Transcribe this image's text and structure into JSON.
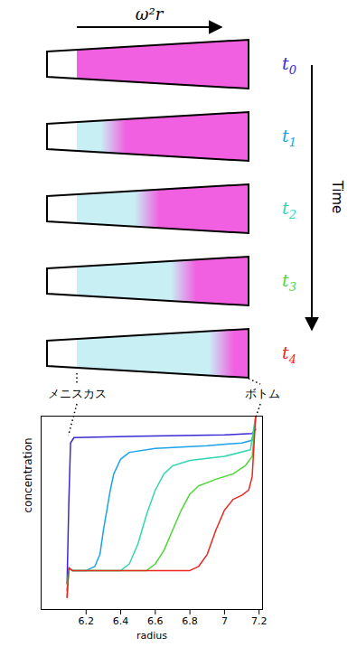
{
  "chart_data": {
    "type": "line",
    "xlabel": "radius",
    "ylabel": "concentration",
    "xlim": [
      5.94,
      7.22
    ],
    "xticks": [
      6.2,
      6.4,
      6.6,
      6.8,
      7,
      7.2
    ],
    "ylim": [
      -0.29,
      1.15
    ],
    "yticks": [],
    "tick_labels": "x",
    "grid": false,
    "series": [
      {
        "name": "t0",
        "color": "#3a2ad6",
        "line_style": "solid",
        "x": [
          6.09,
          6.1,
          6.11,
          6.13,
          6.5,
          7.0,
          7.16,
          7.18
        ],
        "values": [
          -0.1,
          0.5,
          0.95,
          0.99,
          1.0,
          1.01,
          1.02,
          1.05
        ]
      },
      {
        "name": "t1",
        "color": "#1aa3e8",
        "line_style": "solid",
        "x": [
          6.09,
          6.1,
          6.12,
          6.2,
          6.25,
          6.28,
          6.3,
          6.32,
          6.34,
          6.36,
          6.4,
          6.45,
          6.6,
          6.9,
          7.1,
          7.16,
          7.18
        ],
        "values": [
          -0.15,
          0.02,
          0,
          0,
          0.03,
          0.12,
          0.3,
          0.45,
          0.6,
          0.72,
          0.83,
          0.88,
          0.91,
          0.93,
          0.95,
          0.97,
          1.12
        ]
      },
      {
        "name": "t2",
        "color": "#33d6b0",
        "line_style": "solid",
        "x": [
          6.09,
          6.1,
          6.12,
          6.4,
          6.45,
          6.5,
          6.55,
          6.6,
          6.65,
          6.7,
          6.8,
          7.0,
          7.15,
          7.18
        ],
        "values": [
          -0.15,
          0.02,
          0,
          0,
          0.05,
          0.2,
          0.42,
          0.6,
          0.72,
          0.78,
          0.82,
          0.85,
          0.9,
          1.15
        ]
      },
      {
        "name": "t3",
        "color": "#4fd63a",
        "line_style": "solid",
        "x": [
          6.09,
          6.1,
          6.12,
          6.55,
          6.6,
          6.65,
          6.7,
          6.75,
          6.8,
          6.85,
          6.95,
          7.05,
          7.12,
          7.16,
          7.18
        ],
        "values": [
          -0.2,
          0.02,
          0,
          0,
          0.05,
          0.15,
          0.3,
          0.45,
          0.57,
          0.63,
          0.68,
          0.72,
          0.78,
          0.85,
          1.15
        ]
      },
      {
        "name": "t4",
        "color": "#e8281e",
        "line_style": "solid",
        "x": [
          6.09,
          6.1,
          6.12,
          6.8,
          6.85,
          6.9,
          6.95,
          7.0,
          7.05,
          7.1,
          7.14,
          7.16,
          7.18
        ],
        "values": [
          -0.2,
          0.02,
          0,
          0,
          0.03,
          0.12,
          0.3,
          0.45,
          0.53,
          0.56,
          0.6,
          0.7,
          1.15
        ]
      }
    ]
  },
  "diagram": {
    "arrow_label": "ω²r",
    "time_label": "Time",
    "meniscus_label": "メニスカス",
    "bottom_label": "ボトム",
    "meniscus_radius": 6.1,
    "bottom_radius": 7.18,
    "tubes": [
      {
        "label": "t",
        "sub": "0",
        "color": "#3a2ad6",
        "boundary_radius": 6.1
      },
      {
        "label": "t",
        "sub": "1",
        "color": "#1aa3e8",
        "boundary_radius": 6.33
      },
      {
        "label": "t",
        "sub": "2",
        "color": "#33d6b0",
        "boundary_radius": 6.54
      },
      {
        "label": "t",
        "sub": "3",
        "color": "#4fd63a",
        "boundary_radius": 6.77
      },
      {
        "label": "t",
        "sub": "4",
        "color": "#e8281e",
        "boundary_radius": 7.01
      }
    ]
  }
}
